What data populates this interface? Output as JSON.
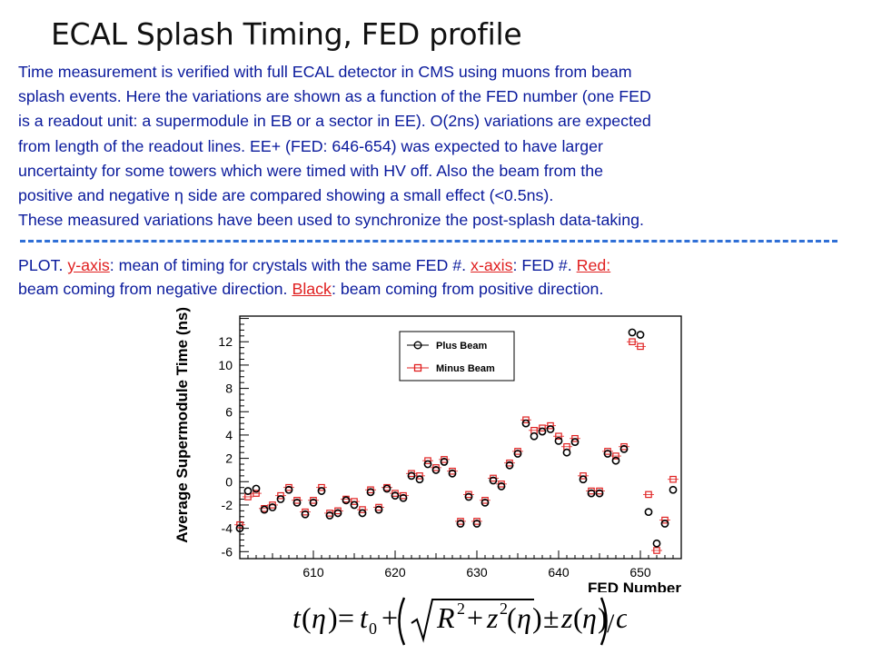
{
  "title": "ECAL Splash Timing, FED profile",
  "description": {
    "lines": [
      "Time measurement is verified with full ECAL detector in CMS using muons from beam",
      "splash events. Here the variations are shown as a function of the FED number (one FED",
      "is a readout unit: a supermodule in EB or a sector in EE). O(2ns) variations are expected",
      "from length of the readout lines. EE+ (FED: 646-654) was expected to have larger",
      "uncertainty for some towers which were timed with HV off. Also the beam from the",
      "positive and negative η side are compared showing a small effect (<0.5ns).",
      "These measured variations have been used to synchronize the post-splash data-taking."
    ]
  },
  "plot_caption": {
    "prefix": "PLOT. ",
    "y_axis_link": "y-axis",
    "y_axis_text": ": mean of timing for crystals with the same FED #. ",
    "x_axis_link": "x-axis",
    "x_axis_text": ": FED #. ",
    "red_link": "Red:",
    "red_text": "beam coming from negative direction. ",
    "black_link": "Black",
    "black_text": ": beam coming from positive direction."
  },
  "colors": {
    "accent_text": "#0a1a9c",
    "link_red": "#e02020",
    "dash_line": "#2f6fd6",
    "plus_beam": "#000000",
    "minus_beam": "#e02020"
  },
  "formula": {
    "t": "t",
    "eta": "η",
    "t0": "t",
    "t0_sub": "0",
    "R": "R",
    "exp": "2",
    "z": "z",
    "pm": "±",
    "c": "c"
  },
  "chart_data": {
    "type": "scatter",
    "title": "",
    "xlabel": "FED Number",
    "ylabel": "Average Supermodule Time (ns)",
    "xlim": [
      601,
      655
    ],
    "ylim": [
      -6.6,
      14.2
    ],
    "x_ticks": [
      610,
      620,
      630,
      640,
      650
    ],
    "y_ticks": [
      -6,
      -4,
      -2,
      0,
      2,
      4,
      6,
      8,
      10,
      12
    ],
    "legend_position": "top-left",
    "series": [
      {
        "name": "Plus Beam",
        "marker": "circle",
        "x": [
          601,
          602,
          603,
          604,
          605,
          606,
          607,
          608,
          609,
          610,
          611,
          612,
          613,
          614,
          615,
          616,
          617,
          618,
          619,
          620,
          621,
          622,
          623,
          624,
          625,
          626,
          627,
          628,
          629,
          630,
          631,
          632,
          633,
          634,
          635,
          636,
          637,
          638,
          639,
          640,
          641,
          642,
          643,
          644,
          645,
          646,
          647,
          648,
          649,
          650,
          651,
          652,
          653,
          654
        ],
        "y": [
          -4.0,
          -0.8,
          -0.6,
          -2.4,
          -2.2,
          -1.5,
          -0.7,
          -1.8,
          -2.8,
          -1.8,
          -0.8,
          -2.9,
          -2.7,
          -1.6,
          -2.0,
          -2.7,
          -0.9,
          -2.4,
          -0.6,
          -1.2,
          -1.4,
          0.5,
          0.2,
          1.5,
          1.0,
          1.7,
          0.7,
          -3.6,
          -1.3,
          -3.6,
          -1.8,
          0.1,
          -0.4,
          1.4,
          2.4,
          5.0,
          3.9,
          4.3,
          4.5,
          3.5,
          2.5,
          3.4,
          0.2,
          -1.0,
          -1.0,
          2.4,
          1.8,
          2.8,
          12.8,
          12.6,
          -2.6,
          -5.3,
          -3.6,
          -0.7
        ]
      },
      {
        "name": "Minus Beam",
        "marker": "square",
        "x": [
          601,
          602,
          603,
          604,
          605,
          606,
          607,
          608,
          609,
          610,
          611,
          612,
          613,
          614,
          615,
          616,
          617,
          618,
          619,
          620,
          621,
          622,
          623,
          624,
          625,
          626,
          627,
          628,
          629,
          630,
          631,
          632,
          633,
          634,
          635,
          636,
          637,
          638,
          639,
          640,
          641,
          642,
          643,
          644,
          645,
          646,
          647,
          648,
          649,
          650,
          651,
          652,
          653,
          654
        ],
        "y": [
          -3.7,
          -1.3,
          -1.0,
          -2.3,
          -2.0,
          -1.2,
          -0.5,
          -1.6,
          -2.6,
          -1.6,
          -0.5,
          -2.7,
          -2.5,
          -1.5,
          -1.7,
          -2.4,
          -0.7,
          -2.2,
          -0.5,
          -1.0,
          -1.2,
          0.7,
          0.5,
          1.8,
          1.2,
          1.9,
          0.9,
          -3.4,
          -1.1,
          -3.4,
          -1.6,
          0.3,
          -0.2,
          1.6,
          2.6,
          5.3,
          4.4,
          4.6,
          4.8,
          3.9,
          3.0,
          3.7,
          0.5,
          -0.8,
          -0.8,
          2.6,
          2.2,
          3.0,
          12.0,
          11.6,
          -1.1,
          -5.9,
          -3.3,
          0.2
        ]
      }
    ]
  }
}
